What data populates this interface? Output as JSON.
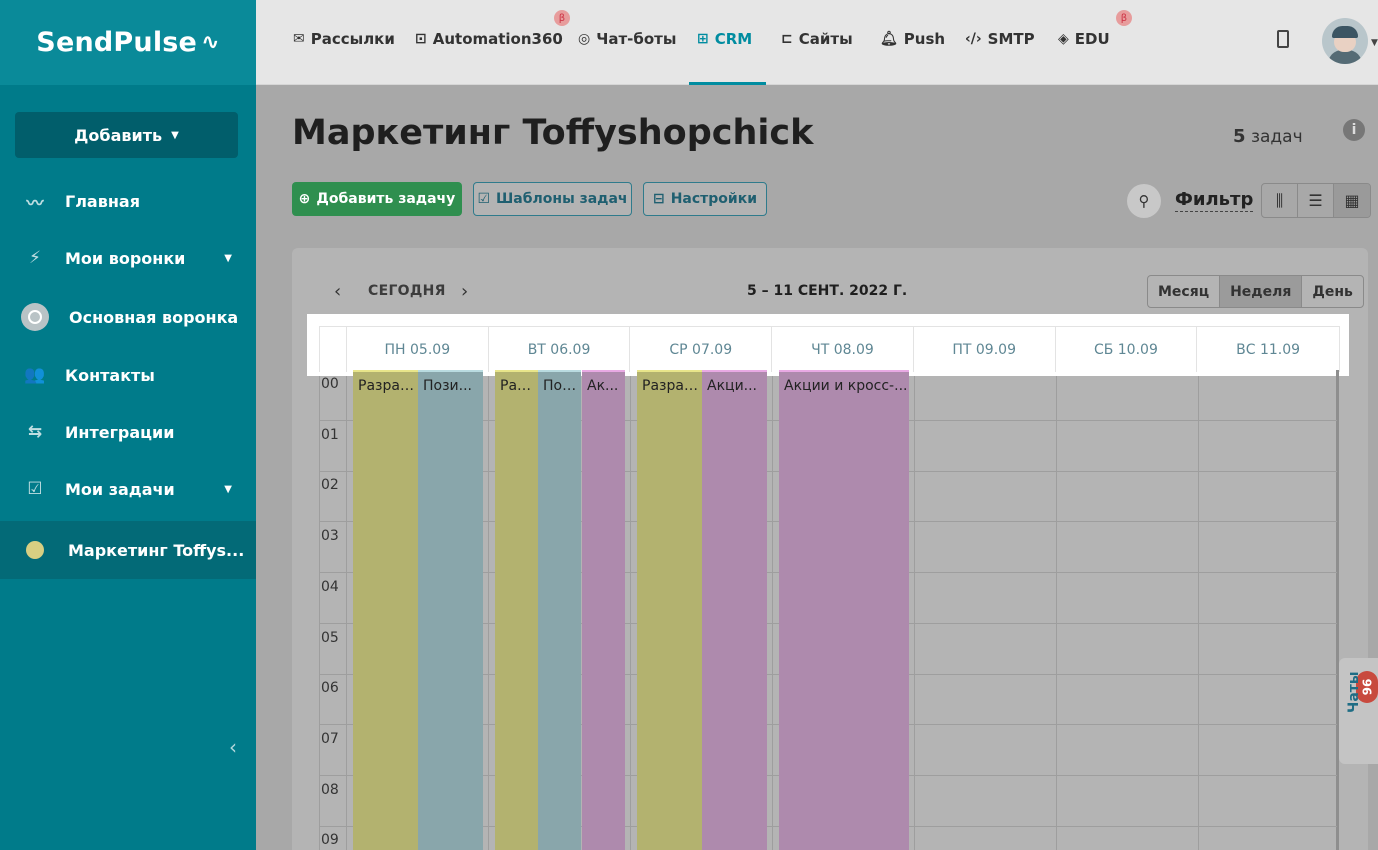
{
  "app": {
    "logo": "SendPulse"
  },
  "sidebar": {
    "add_button": "Добавить",
    "items": [
      {
        "label": "Главная",
        "icon": "chart-line-icon"
      },
      {
        "label": "Мои воронки",
        "icon": "funnel-icon"
      },
      {
        "label": "Основная воронка",
        "icon": "circle-icon"
      },
      {
        "label": "Контакты",
        "icon": "contacts-icon"
      },
      {
        "label": "Интеграции",
        "icon": "arrows-icon"
      },
      {
        "label": "Мои задачи",
        "icon": "checkbox-icon"
      },
      {
        "label": "Маркетинг Toffys...",
        "icon": "yellow-dot-icon"
      }
    ]
  },
  "topnav": {
    "items": [
      {
        "label": "Рассылки",
        "icon": "envelope-icon"
      },
      {
        "label": "Automation360",
        "icon": "automation-icon",
        "badge": "β"
      },
      {
        "label": "Чат-боты",
        "icon": "chat-icon"
      },
      {
        "label": "CRM",
        "icon": "crm-icon",
        "active": true
      },
      {
        "label": "Сайты",
        "icon": "site-icon"
      },
      {
        "label": "Push",
        "icon": "bell-icon"
      },
      {
        "label": "SMTP",
        "icon": "code-icon"
      },
      {
        "label": "EDU",
        "icon": "graduation-icon",
        "badge": "β"
      }
    ]
  },
  "page": {
    "title": "Маркетинг Toffyshopchick",
    "task_count_number": "5",
    "task_count_label": "задач",
    "add_task": "Добавить задачу",
    "templates": "Шаблоны задач",
    "settings": "Настройки",
    "filter": "Фильтр"
  },
  "calendar": {
    "today": "СЕГОДНЯ",
    "range": "5 – 11 СЕНТ. 2022 Г.",
    "views": [
      "Месяц",
      "Неделя",
      "День"
    ],
    "selected_view": "Неделя",
    "days": [
      "ПН 05.09",
      "ВТ 06.09",
      "СР 07.09",
      "ЧТ 08.09",
      "ПТ 09.09",
      "СБ 10.09",
      "ВС 11.09"
    ],
    "hours": [
      "00",
      "01",
      "02",
      "03",
      "04",
      "05",
      "06",
      "07",
      "08",
      "09"
    ],
    "events": [
      {
        "day": 0,
        "label": "Разработ",
        "color": "yellow"
      },
      {
        "day": 0,
        "label": "Пози...",
        "color": "blue"
      },
      {
        "day": 1,
        "label": "Разра",
        "color": "yellow"
      },
      {
        "day": 1,
        "label": "Позиц",
        "color": "blue"
      },
      {
        "day": 1,
        "label": "Ак...",
        "color": "pink"
      },
      {
        "day": 2,
        "label": "Разработ",
        "color": "yellow"
      },
      {
        "day": 2,
        "label": "Акци...",
        "color": "pink"
      },
      {
        "day": 3,
        "label": "Акции и кросс-...",
        "color": "pink"
      }
    ]
  },
  "chat": {
    "label": "Чаты",
    "count": "96"
  },
  "colors": {
    "sidebar": "#007b8a",
    "accent": "#008ca0",
    "green": "#2f8f4f"
  }
}
